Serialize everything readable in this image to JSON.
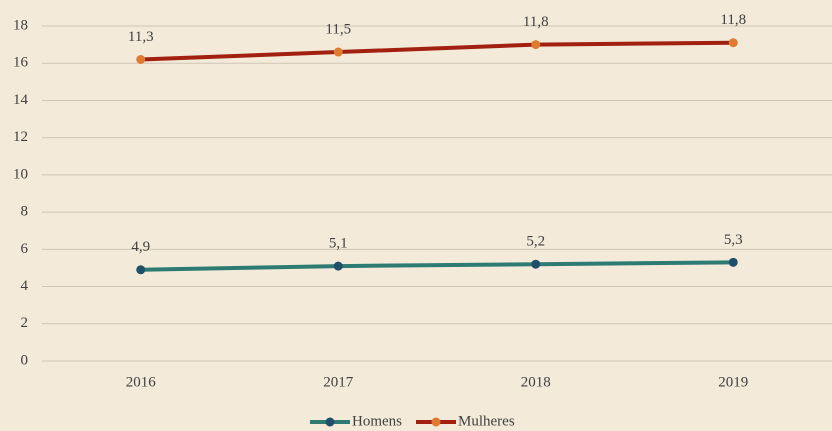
{
  "chart_data": {
    "type": "line",
    "stacked": true,
    "categories": [
      "2016",
      "2017",
      "2018",
      "2019"
    ],
    "series": [
      {
        "name": "Homens",
        "color": "#2e7b74",
        "marker_color": "#1f4f6a",
        "values": [
          4.9,
          5.1,
          5.2,
          5.3
        ],
        "value_labels": [
          "4,9",
          "5,1",
          "5,2",
          "5,3"
        ]
      },
      {
        "name": "Mulheres",
        "color": "#a1200f",
        "marker_color": "#e07a30",
        "values": [
          11.3,
          11.5,
          11.8,
          11.8
        ],
        "value_labels": [
          "11,3",
          "11,5",
          "11,8",
          "11,8"
        ]
      }
    ],
    "ylim": [
      0,
      18
    ],
    "yticks": [
      0,
      2,
      4,
      6,
      8,
      10,
      12,
      14,
      16,
      18
    ],
    "grid": true,
    "legend": "bottom"
  }
}
